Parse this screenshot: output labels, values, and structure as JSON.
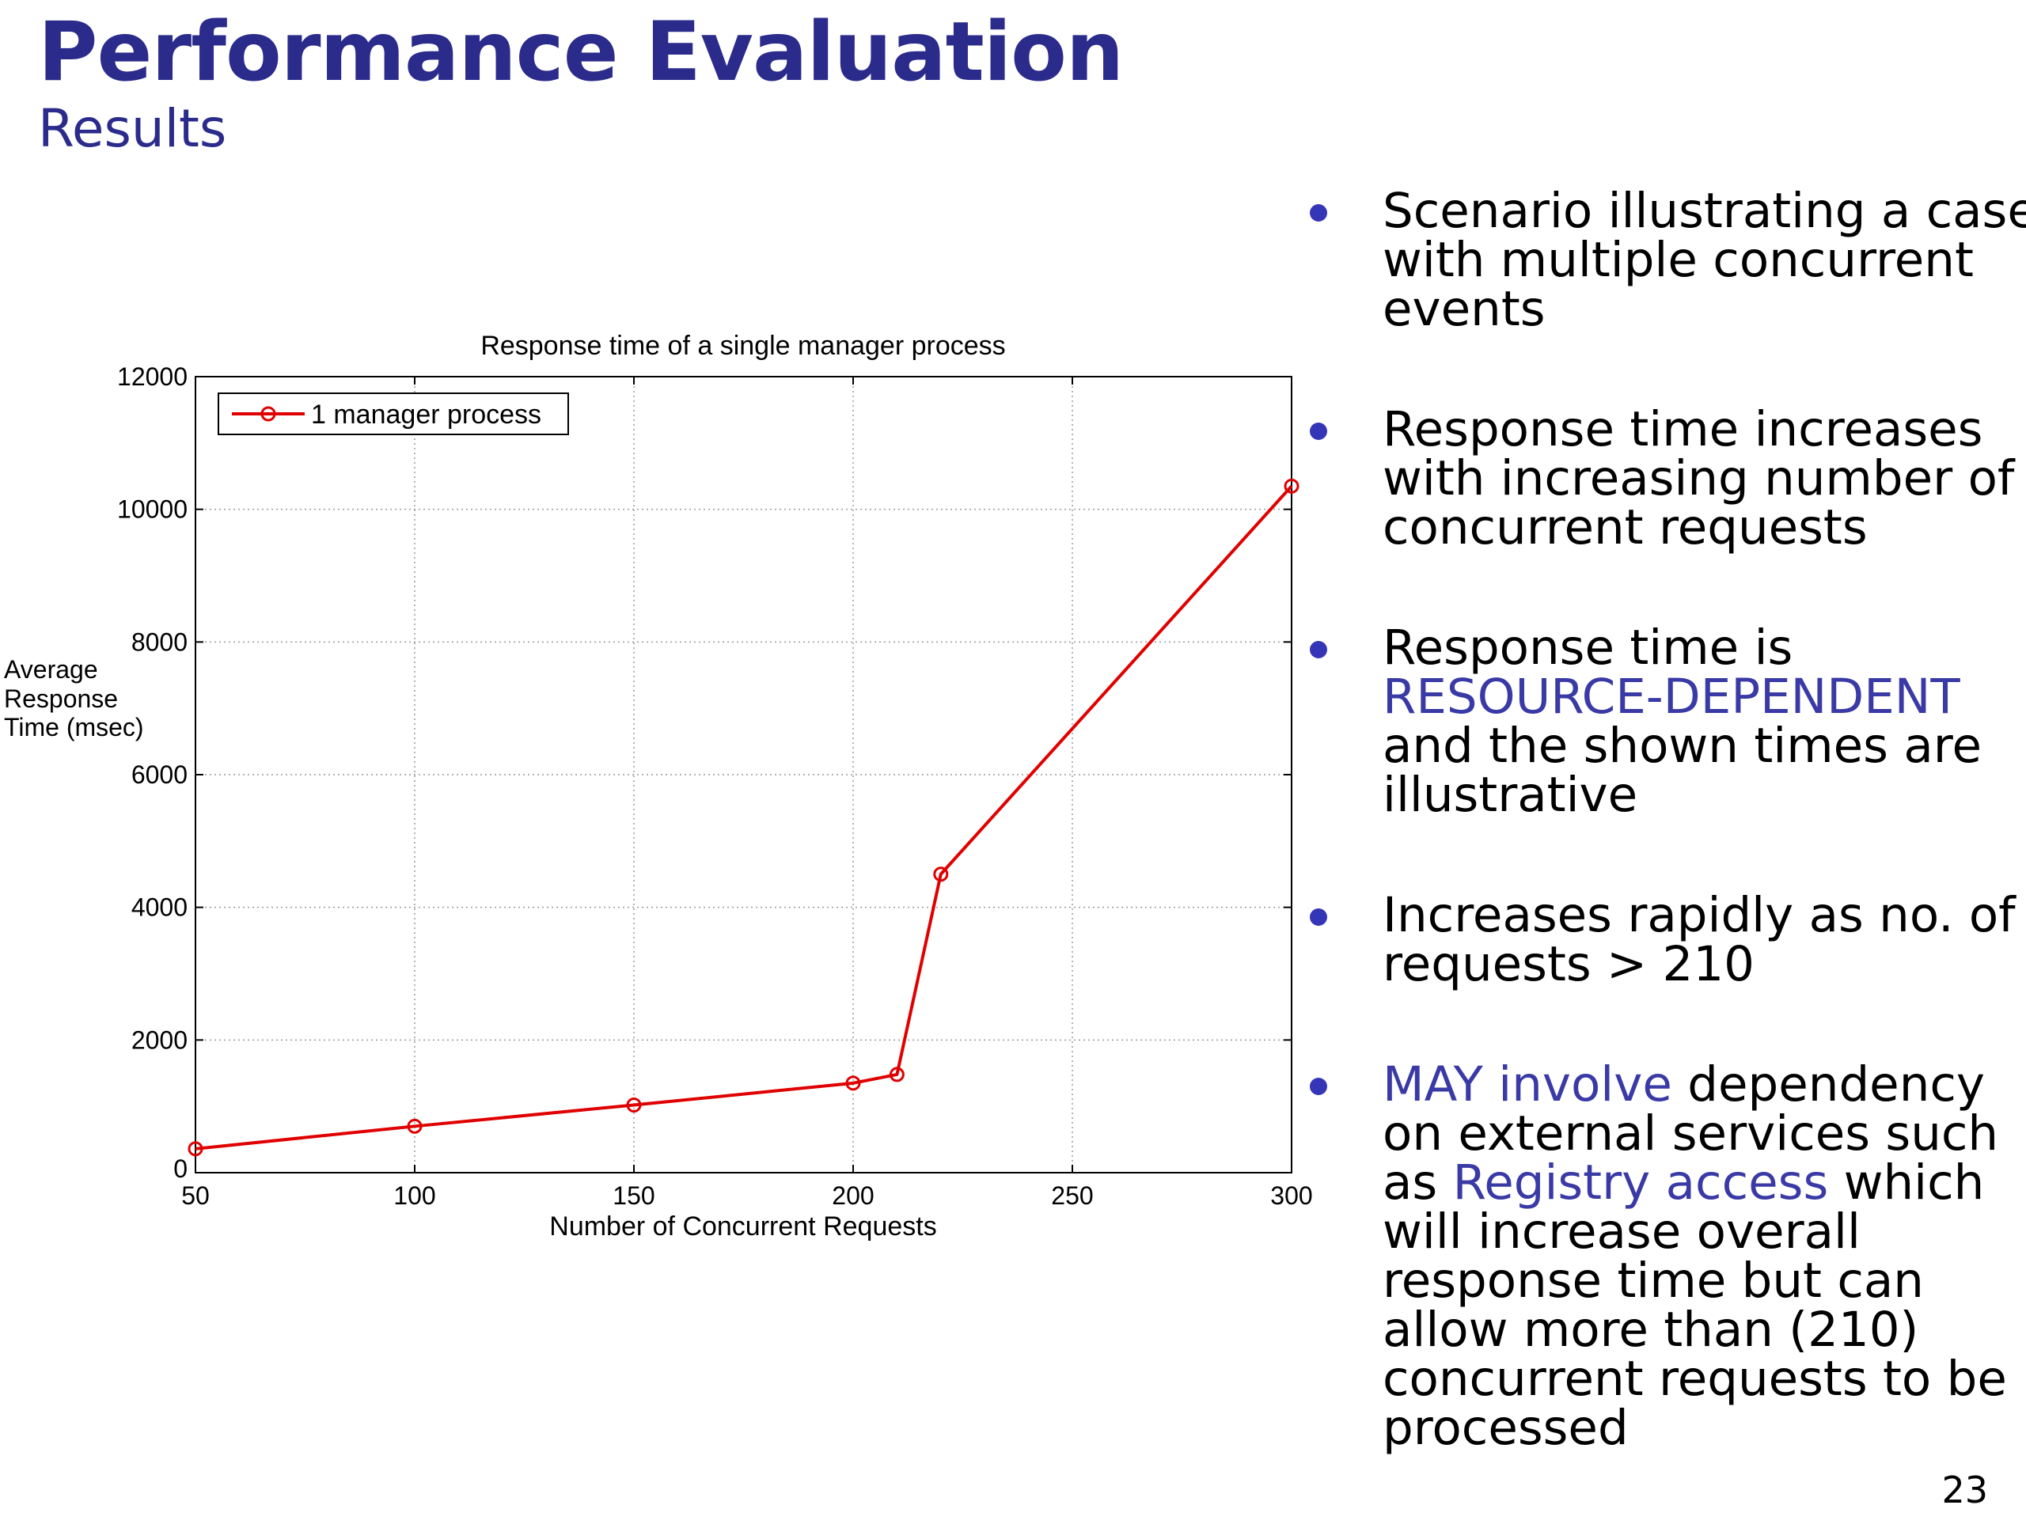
{
  "slide": {
    "title": "Performance Evaluation",
    "subtitle": "Results",
    "page_number": "23"
  },
  "bullets": [
    {
      "lines": [
        [
          {
            "t": "Scenario illustrating a case"
          }
        ],
        [
          {
            "t": "with multiple concurrent"
          }
        ],
        [
          {
            "t": "events"
          }
        ]
      ]
    },
    {
      "lines": [
        [
          {
            "t": "Response time increases"
          }
        ],
        [
          {
            "t": "with increasing number of"
          }
        ],
        [
          {
            "t": "concurrent requests"
          }
        ]
      ]
    },
    {
      "lines": [
        [
          {
            "t": "Response time is"
          }
        ],
        [
          {
            "t": "RESOURCE-DEPENDENT",
            "hl": true
          }
        ],
        [
          {
            "t": "and the shown times are"
          }
        ],
        [
          {
            "t": "illustrative"
          }
        ]
      ]
    },
    {
      "lines": [
        [
          {
            "t": "Increases rapidly as no. of"
          }
        ],
        [
          {
            "t": "requests > 210"
          }
        ]
      ]
    },
    {
      "lines": [
        [
          {
            "t": "MAY involve",
            "hl": true
          },
          {
            "t": " dependency"
          }
        ],
        [
          {
            "t": "on external services such"
          }
        ],
        [
          {
            "t": "as "
          },
          {
            "t": "Registry access",
            "hl": true
          },
          {
            "t": " which"
          }
        ],
        [
          {
            "t": "will increase overall"
          }
        ],
        [
          {
            "t": "response time but can"
          }
        ],
        [
          {
            "t": "allow more than (210)"
          }
        ],
        [
          {
            "t": "concurrent requests to be"
          }
        ],
        [
          {
            "t": "processed"
          }
        ]
      ]
    }
  ],
  "colors": {
    "accent": "#2b2b8c",
    "highlight": "#3a3aa6",
    "bullet": "#3535b8",
    "series": "#e00000"
  },
  "chart_data": {
    "type": "line",
    "title": "Response time of a single manager process",
    "xlabel": "Number of Concurrent Requests",
    "ylabel_lines": [
      "Average",
      "Response",
      "Time (msec)"
    ],
    "xlim": [
      50,
      300
    ],
    "ylim": [
      0,
      12000
    ],
    "xticks": [
      50,
      100,
      150,
      200,
      250,
      300
    ],
    "yticks": [
      0,
      2000,
      4000,
      6000,
      8000,
      10000,
      12000
    ],
    "grid": true,
    "legend_position": "top-left",
    "series": [
      {
        "name": "1 manager process",
        "color": "#e00000",
        "marker": "circle",
        "x": [
          50,
          100,
          150,
          200,
          210,
          220,
          300
        ],
        "y": [
          360,
          700,
          1020,
          1350,
          1480,
          4500,
          10350
        ]
      }
    ]
  }
}
